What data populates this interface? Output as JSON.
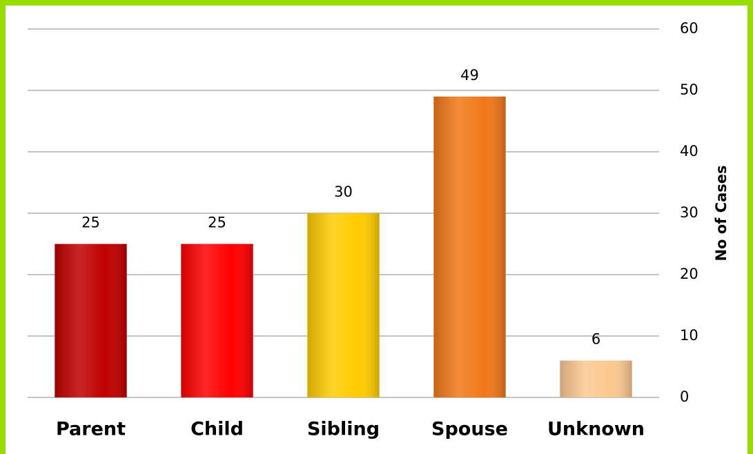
{
  "chart_data": {
    "type": "bar",
    "y_label": "No of Cases",
    "categories": [
      "Parent",
      "Child",
      "Sibling",
      "Spouse",
      "Unknown"
    ],
    "values": [
      25,
      25,
      30,
      49,
      6
    ],
    "colors": [
      "#c00000",
      "#ff0000",
      "#ffcc00",
      "#f07818",
      "#fcc890"
    ],
    "ylim": [
      0,
      60
    ],
    "yticks": [
      0,
      10,
      20,
      30,
      40,
      50,
      60
    ],
    "grid": true,
    "y_axis_side": "right"
  }
}
